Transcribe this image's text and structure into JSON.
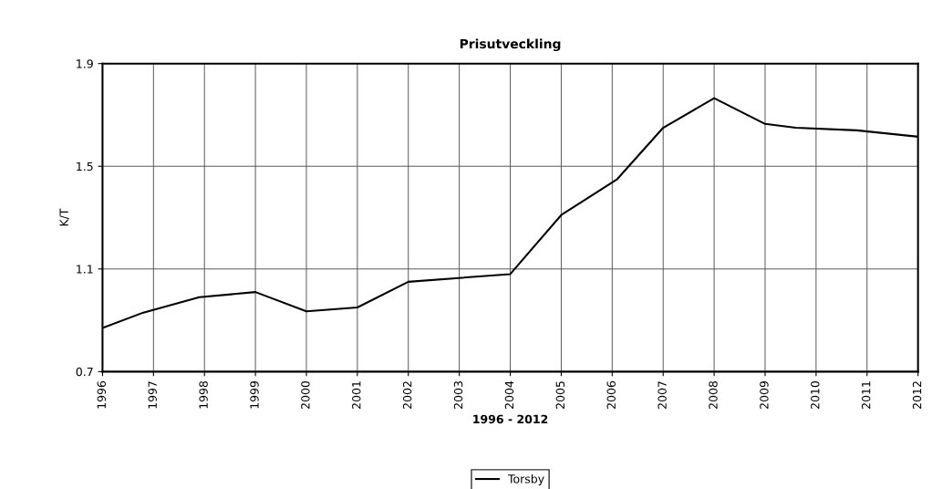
{
  "chart_data": {
    "type": "line",
    "title": "Prisutveckling",
    "xlabel": "1996 - 2012",
    "ylabel": "K/T",
    "x": [
      1996,
      1996.8,
      1997.9,
      1999,
      2000,
      2001,
      2002,
      2004,
      2005,
      2006.1,
      2007,
      2008,
      2009,
      2009.6,
      2010.8,
      2012
    ],
    "series": [
      {
        "name": "Torsby",
        "color": "#000000",
        "values": [
          0.87,
          0.93,
          0.99,
          1.01,
          0.935,
          0.95,
          1.05,
          1.08,
          1.31,
          1.45,
          1.65,
          1.765,
          1.665,
          1.65,
          1.64,
          1.615
        ]
      }
    ],
    "xlim": [
      1996,
      2012
    ],
    "xticks": [
      1996,
      1997,
      1998,
      1999,
      2000,
      2001,
      2002,
      2003,
      2004,
      2005,
      2006,
      2007,
      2008,
      2009,
      2010,
      2011,
      2012
    ],
    "ylim": [
      0.7,
      1.9
    ],
    "yticks": [
      0.7,
      1.1,
      1.5,
      1.9
    ],
    "grid": true,
    "legend": "bottom",
    "marker": "none",
    "line_style": "solid"
  }
}
